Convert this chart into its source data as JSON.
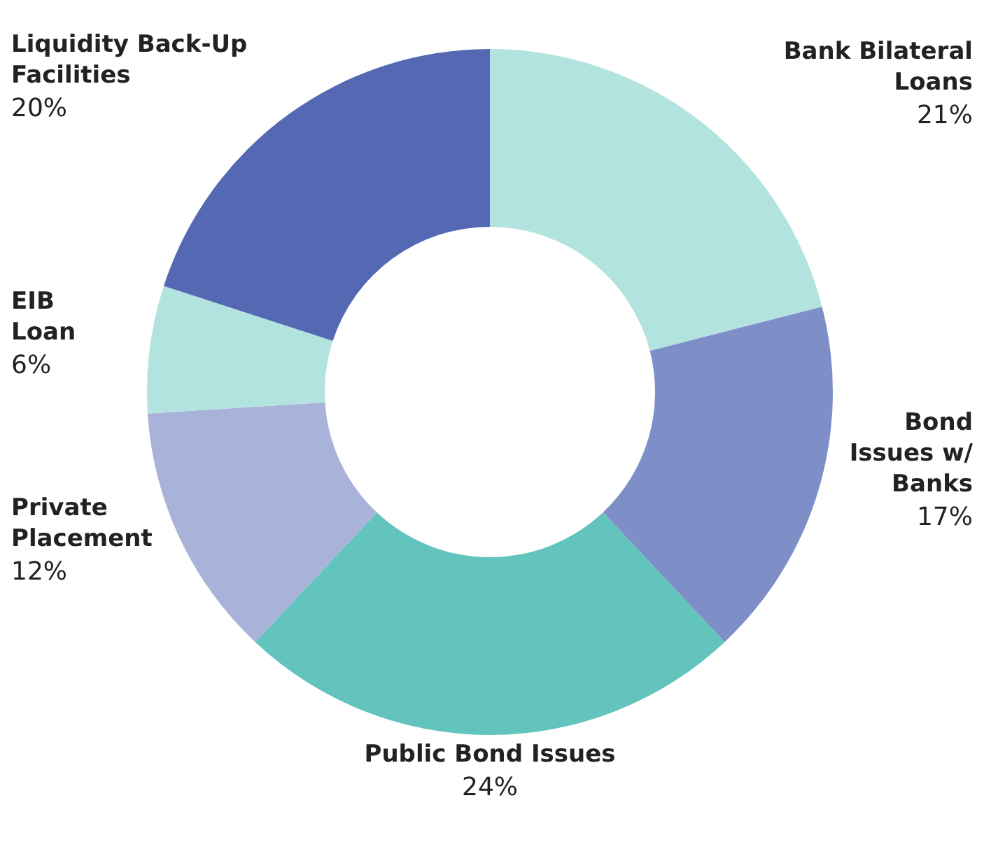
{
  "chart_data": {
    "type": "donut",
    "categories": [
      "Bank Bilateral\nLoans",
      "Bond\nIssues w/\nBanks",
      "Public Bond Issues",
      "Private\nPlacement",
      "EIB\nLoan",
      "Liquidity Back-Up\nFacilities"
    ],
    "values": [
      21,
      17,
      24,
      12,
      6,
      20
    ],
    "value_labels": [
      "21%",
      "17%",
      "24%",
      "12%",
      "6%",
      "20%"
    ],
    "colors": [
      "#b2e3df",
      "#7d8fc6",
      "#63c4bd",
      "#a9b3d9",
      "#b2e3df",
      "#5468b3"
    ]
  }
}
